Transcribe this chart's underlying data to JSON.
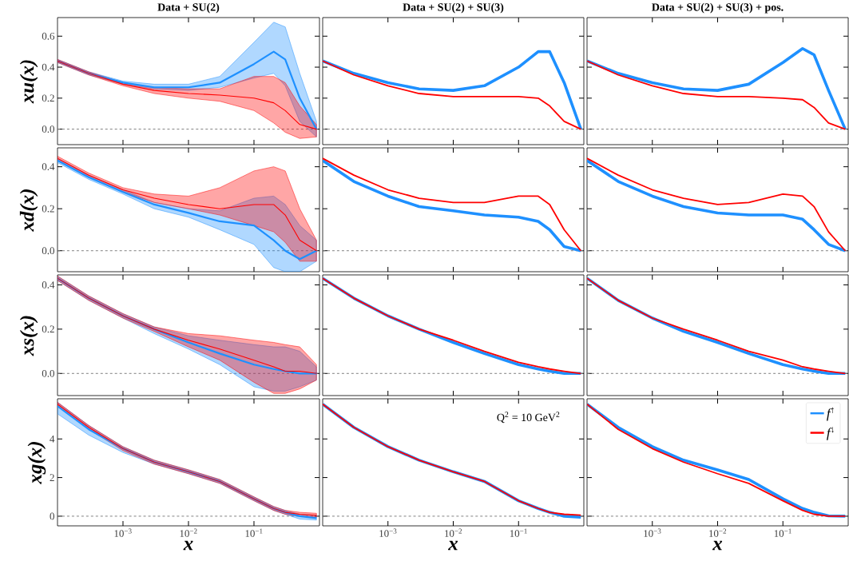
{
  "chart_data": [
    {
      "type": "line",
      "log": "x",
      "title": "Data + SU(2)",
      "ylabel": "xu(x)",
      "x": [
        0.0001,
        0.0003,
        0.001,
        0.003,
        0.01,
        0.03,
        0.1,
        0.2,
        0.3,
        0.5,
        0.9
      ],
      "xlim": [
        0.0001,
        1
      ],
      "ylim": [
        -0.1,
        0.72
      ],
      "xticks": [
        {
          "value": 0.001,
          "label": null
        },
        {
          "value": 0.01,
          "label": null
        },
        {
          "value": 0.1,
          "label": null
        }
      ],
      "yticks": [
        {
          "value": 0,
          "label": "0.0"
        },
        {
          "value": 0.2,
          "label": "0.2"
        },
        {
          "value": 0.4,
          "label": "0.4"
        },
        {
          "value": 0.6,
          "label": "0.6"
        }
      ],
      "tick_labels": "y",
      "ref_lines": [
        {
          "axis": "y",
          "value": 0,
          "color": "#808080",
          "line_style": "dashed"
        }
      ],
      "series": [
        {
          "color": "#1e90ff",
          "values": [
            0.44,
            0.36,
            0.3,
            0.27,
            0.27,
            0.3,
            0.42,
            0.5,
            0.45,
            0.2,
            0.0
          ],
          "lower": [
            0.43,
            0.35,
            0.29,
            0.26,
            0.25,
            0.27,
            0.33,
            0.36,
            0.28,
            0.05,
            -0.05
          ],
          "upper": [
            0.45,
            0.37,
            0.31,
            0.29,
            0.29,
            0.34,
            0.56,
            0.69,
            0.66,
            0.36,
            0.05
          ]
        },
        {
          "color": "#ff0000",
          "values": [
            0.44,
            0.36,
            0.29,
            0.25,
            0.23,
            0.22,
            0.2,
            0.17,
            0.12,
            0.03,
            0.0
          ],
          "lower": [
            0.43,
            0.35,
            0.28,
            0.23,
            0.2,
            0.18,
            0.12,
            0.04,
            -0.02,
            -0.06,
            -0.05
          ],
          "upper": [
            0.45,
            0.37,
            0.3,
            0.27,
            0.26,
            0.26,
            0.34,
            0.34,
            0.3,
            0.15,
            0.03
          ]
        }
      ]
    },
    {
      "type": "line",
      "log": "x",
      "title": "Data + SU(2) + SU(3)",
      "x": [
        0.0001,
        0.0003,
        0.001,
        0.003,
        0.01,
        0.03,
        0.1,
        0.2,
        0.3,
        0.5,
        0.9
      ],
      "xlim": [
        0.0001,
        1
      ],
      "ylim": [
        -0.1,
        0.72
      ],
      "xticks": [
        {
          "value": 0.001,
          "label": null
        },
        {
          "value": 0.01,
          "label": null
        },
        {
          "value": 0.1,
          "label": null
        }
      ],
      "yticks": [
        {
          "value": 0,
          "label": null
        },
        {
          "value": 0.2,
          "label": null
        },
        {
          "value": 0.4,
          "label": null
        },
        {
          "value": 0.6,
          "label": null
        }
      ],
      "tick_labels": false,
      "ref_lines": [
        {
          "axis": "y",
          "value": 0,
          "color": "#808080",
          "line_style": "dashed"
        }
      ],
      "series": [
        {
          "color": "#1e90ff",
          "values": [
            0.44,
            0.36,
            0.3,
            0.26,
            0.25,
            0.28,
            0.4,
            0.5,
            0.5,
            0.3,
            0.0
          ]
        },
        {
          "color": "#ff0000",
          "values": [
            0.44,
            0.35,
            0.28,
            0.23,
            0.21,
            0.21,
            0.21,
            0.2,
            0.15,
            0.05,
            0.0
          ]
        }
      ]
    },
    {
      "type": "line",
      "log": "x",
      "title": "Data + SU(2) + SU(3) + pos.",
      "x": [
        0.0001,
        0.0003,
        0.001,
        0.003,
        0.01,
        0.03,
        0.1,
        0.2,
        0.3,
        0.5,
        0.9
      ],
      "xlim": [
        0.0001,
        1
      ],
      "ylim": [
        -0.1,
        0.72
      ],
      "xticks": [
        {
          "value": 0.001,
          "label": null
        },
        {
          "value": 0.01,
          "label": null
        },
        {
          "value": 0.1,
          "label": null
        }
      ],
      "yticks": [
        {
          "value": 0,
          "label": null
        },
        {
          "value": 0.2,
          "label": null
        },
        {
          "value": 0.4,
          "label": null
        },
        {
          "value": 0.6,
          "label": null
        }
      ],
      "tick_labels": false,
      "ref_lines": [
        {
          "axis": "y",
          "value": 0,
          "color": "#808080",
          "line_style": "dashed"
        }
      ],
      "series": [
        {
          "color": "#1e90ff",
          "values": [
            0.44,
            0.36,
            0.3,
            0.26,
            0.25,
            0.29,
            0.43,
            0.52,
            0.48,
            0.25,
            0.0
          ]
        },
        {
          "color": "#ff0000",
          "values": [
            0.44,
            0.35,
            0.28,
            0.23,
            0.21,
            0.21,
            0.2,
            0.19,
            0.14,
            0.04,
            0.0
          ]
        }
      ]
    },
    {
      "type": "line",
      "log": "x",
      "ylabel": "xd(x)",
      "x": [
        0.0001,
        0.0003,
        0.001,
        0.003,
        0.01,
        0.03,
        0.1,
        0.2,
        0.3,
        0.5,
        0.9
      ],
      "xlim": [
        0.0001,
        1
      ],
      "ylim": [
        -0.1,
        0.49
      ],
      "xticks": [
        {
          "value": 0.001,
          "label": null
        },
        {
          "value": 0.01,
          "label": null
        },
        {
          "value": 0.1,
          "label": null
        }
      ],
      "yticks": [
        {
          "value": 0,
          "label": "0.0"
        },
        {
          "value": 0.2,
          "label": "0.2"
        },
        {
          "value": 0.4,
          "label": "0.4"
        }
      ],
      "tick_labels": "y",
      "ref_lines": [
        {
          "axis": "y",
          "value": 0,
          "color": "#808080",
          "line_style": "dashed"
        }
      ],
      "series": [
        {
          "color": "#1e90ff",
          "values": [
            0.43,
            0.35,
            0.28,
            0.22,
            0.18,
            0.14,
            0.12,
            0.05,
            0.0,
            -0.04,
            0.0
          ],
          "lower": [
            0.42,
            0.34,
            0.27,
            0.2,
            0.16,
            0.1,
            0.03,
            -0.08,
            -0.1,
            -0.1,
            -0.05
          ],
          "upper": [
            0.44,
            0.36,
            0.29,
            0.23,
            0.2,
            0.19,
            0.25,
            0.26,
            0.22,
            0.12,
            0.05
          ]
        },
        {
          "color": "#ff0000",
          "values": [
            0.44,
            0.36,
            0.29,
            0.25,
            0.22,
            0.2,
            0.22,
            0.22,
            0.17,
            0.05,
            0.0
          ],
          "lower": [
            0.43,
            0.35,
            0.28,
            0.23,
            0.2,
            0.17,
            0.12,
            0.09,
            0.04,
            -0.05,
            -0.05
          ],
          "upper": [
            0.45,
            0.37,
            0.3,
            0.27,
            0.26,
            0.3,
            0.38,
            0.4,
            0.38,
            0.2,
            0.05
          ]
        }
      ]
    },
    {
      "type": "line",
      "log": "x",
      "x": [
        0.0001,
        0.0003,
        0.001,
        0.003,
        0.01,
        0.03,
        0.1,
        0.2,
        0.3,
        0.5,
        0.9
      ],
      "xlim": [
        0.0001,
        1
      ],
      "ylim": [
        -0.1,
        0.49
      ],
      "xticks": [
        {
          "value": 0.001,
          "label": null
        },
        {
          "value": 0.01,
          "label": null
        },
        {
          "value": 0.1,
          "label": null
        }
      ],
      "yticks": [
        {
          "value": 0,
          "label": null
        },
        {
          "value": 0.2,
          "label": null
        },
        {
          "value": 0.4,
          "label": null
        }
      ],
      "tick_labels": false,
      "ref_lines": [
        {
          "axis": "y",
          "value": 0,
          "color": "#808080",
          "line_style": "dashed"
        }
      ],
      "series": [
        {
          "color": "#1e90ff",
          "values": [
            0.43,
            0.33,
            0.26,
            0.21,
            0.19,
            0.17,
            0.16,
            0.14,
            0.1,
            0.02,
            0.0
          ]
        },
        {
          "color": "#ff0000",
          "values": [
            0.44,
            0.36,
            0.29,
            0.25,
            0.23,
            0.23,
            0.26,
            0.26,
            0.22,
            0.1,
            0.0
          ]
        }
      ]
    },
    {
      "type": "line",
      "log": "x",
      "x": [
        0.0001,
        0.0003,
        0.001,
        0.003,
        0.01,
        0.03,
        0.1,
        0.2,
        0.3,
        0.5,
        0.9
      ],
      "xlim": [
        0.0001,
        1
      ],
      "ylim": [
        -0.1,
        0.49
      ],
      "xticks": [
        {
          "value": 0.001,
          "label": null
        },
        {
          "value": 0.01,
          "label": null
        },
        {
          "value": 0.1,
          "label": null
        }
      ],
      "yticks": [
        {
          "value": 0,
          "label": null
        },
        {
          "value": 0.2,
          "label": null
        },
        {
          "value": 0.4,
          "label": null
        }
      ],
      "tick_labels": false,
      "ref_lines": [
        {
          "axis": "y",
          "value": 0,
          "color": "#808080",
          "line_style": "dashed"
        }
      ],
      "series": [
        {
          "color": "#1e90ff",
          "values": [
            0.43,
            0.33,
            0.26,
            0.21,
            0.18,
            0.17,
            0.17,
            0.15,
            0.1,
            0.03,
            0.0
          ]
        },
        {
          "color": "#ff0000",
          "values": [
            0.44,
            0.36,
            0.29,
            0.25,
            0.22,
            0.23,
            0.27,
            0.26,
            0.21,
            0.09,
            0.0
          ]
        }
      ]
    },
    {
      "type": "line",
      "log": "x",
      "ylabel": "xs(x)",
      "x": [
        0.0001,
        0.0003,
        0.001,
        0.003,
        0.01,
        0.03,
        0.1,
        0.2,
        0.3,
        0.5,
        0.9
      ],
      "xlim": [
        0.0001,
        1
      ],
      "ylim": [
        -0.1,
        0.445
      ],
      "xticks": [
        {
          "value": 0.001,
          "label": null
        },
        {
          "value": 0.01,
          "label": null
        },
        {
          "value": 0.1,
          "label": null
        }
      ],
      "yticks": [
        {
          "value": 0,
          "label": "0.0"
        },
        {
          "value": 0.2,
          "label": "0.2"
        },
        {
          "value": 0.4,
          "label": "0.4"
        }
      ],
      "tick_labels": "y",
      "ref_lines": [
        {
          "axis": "y",
          "value": 0,
          "color": "#808080",
          "line_style": "dashed"
        }
      ],
      "series": [
        {
          "color": "#1e90ff",
          "values": [
            0.43,
            0.34,
            0.26,
            0.2,
            0.14,
            0.09,
            0.04,
            0.02,
            0.01,
            0.0,
            0.0
          ],
          "lower": [
            0.42,
            0.33,
            0.25,
            0.18,
            0.11,
            0.04,
            -0.06,
            -0.08,
            -0.08,
            -0.06,
            -0.03
          ],
          "upper": [
            0.44,
            0.35,
            0.27,
            0.21,
            0.17,
            0.15,
            0.13,
            0.12,
            0.12,
            0.1,
            0.03
          ]
        },
        {
          "color": "#ff0000",
          "values": [
            0.43,
            0.34,
            0.26,
            0.2,
            0.15,
            0.11,
            0.06,
            0.03,
            0.01,
            0.01,
            0.0
          ],
          "lower": [
            0.42,
            0.33,
            0.25,
            0.19,
            0.12,
            0.06,
            -0.04,
            -0.09,
            -0.09,
            -0.07,
            -0.03
          ],
          "upper": [
            0.44,
            0.35,
            0.27,
            0.21,
            0.18,
            0.17,
            0.15,
            0.14,
            0.13,
            0.12,
            0.04
          ]
        }
      ]
    },
    {
      "type": "line",
      "log": "x",
      "x": [
        0.0001,
        0.0003,
        0.001,
        0.003,
        0.01,
        0.03,
        0.1,
        0.2,
        0.3,
        0.5,
        0.9
      ],
      "xlim": [
        0.0001,
        1
      ],
      "ylim": [
        -0.1,
        0.445
      ],
      "xticks": [
        {
          "value": 0.001,
          "label": null
        },
        {
          "value": 0.01,
          "label": null
        },
        {
          "value": 0.1,
          "label": null
        }
      ],
      "yticks": [
        {
          "value": 0,
          "label": null
        },
        {
          "value": 0.2,
          "label": null
        },
        {
          "value": 0.4,
          "label": null
        }
      ],
      "tick_labels": false,
      "ref_lines": [
        {
          "axis": "y",
          "value": 0,
          "color": "#808080",
          "line_style": "dashed"
        }
      ],
      "series": [
        {
          "color": "#1e90ff",
          "values": [
            0.43,
            0.34,
            0.26,
            0.2,
            0.14,
            0.09,
            0.04,
            0.02,
            0.01,
            0.0,
            0.0
          ]
        },
        {
          "color": "#ff0000",
          "values": [
            0.43,
            0.34,
            0.26,
            0.2,
            0.15,
            0.1,
            0.05,
            0.03,
            0.02,
            0.01,
            0.0
          ]
        }
      ]
    },
    {
      "type": "line",
      "log": "x",
      "x": [
        0.0001,
        0.0003,
        0.001,
        0.003,
        0.01,
        0.03,
        0.1,
        0.2,
        0.3,
        0.5,
        0.9
      ],
      "xlim": [
        0.0001,
        1
      ],
      "ylim": [
        -0.1,
        0.445
      ],
      "xticks": [
        {
          "value": 0.001,
          "label": null
        },
        {
          "value": 0.01,
          "label": null
        },
        {
          "value": 0.1,
          "label": null
        }
      ],
      "yticks": [
        {
          "value": 0,
          "label": null
        },
        {
          "value": 0.2,
          "label": null
        },
        {
          "value": 0.4,
          "label": null
        }
      ],
      "tick_labels": false,
      "ref_lines": [
        {
          "axis": "y",
          "value": 0,
          "color": "#808080",
          "line_style": "dashed"
        }
      ],
      "series": [
        {
          "color": "#1e90ff",
          "values": [
            0.43,
            0.33,
            0.25,
            0.19,
            0.14,
            0.09,
            0.04,
            0.02,
            0.01,
            0.0,
            0.0
          ]
        },
        {
          "color": "#ff0000",
          "values": [
            0.43,
            0.33,
            0.25,
            0.2,
            0.15,
            0.1,
            0.06,
            0.03,
            0.02,
            0.01,
            0.0
          ]
        }
      ]
    },
    {
      "type": "line",
      "log": "x",
      "ylabel": "xg(x)",
      "xlabel": "x",
      "x": [
        0.0001,
        0.0003,
        0.001,
        0.003,
        0.01,
        0.03,
        0.1,
        0.2,
        0.3,
        0.5,
        0.9
      ],
      "xlim": [
        0.0001,
        1
      ],
      "ylim": [
        -0.5,
        6.08
      ],
      "xticks": [
        {
          "value": 0.001,
          "label": "10$^{−3}$"
        },
        {
          "value": 0.01,
          "label": "10$^{−2}$"
        },
        {
          "value": 0.1,
          "label": "10$^{−1}$"
        }
      ],
      "yticks": [
        0,
        2,
        4
      ],
      "ref_lines": [
        {
          "axis": "y",
          "value": 0,
          "color": "#808080",
          "line_style": "dashed"
        }
      ],
      "series": [
        {
          "color": "#1e90ff",
          "values": [
            5.7,
            4.5,
            3.5,
            2.8,
            2.3,
            1.8,
            0.9,
            0.4,
            0.2,
            0.0,
            -0.1
          ],
          "lower": [
            5.3,
            4.2,
            3.3,
            2.7,
            2.2,
            1.7,
            0.8,
            0.3,
            0.1,
            -0.15,
            -0.2
          ],
          "upper": [
            5.9,
            4.7,
            3.6,
            2.9,
            2.4,
            1.9,
            1.0,
            0.5,
            0.3,
            0.1,
            0.05
          ]
        },
        {
          "color": "#ff0000",
          "values": [
            5.8,
            4.6,
            3.5,
            2.8,
            2.3,
            1.8,
            0.9,
            0.4,
            0.2,
            0.1,
            0.05
          ],
          "lower": [
            5.7,
            4.5,
            3.4,
            2.7,
            2.2,
            1.7,
            0.8,
            0.3,
            0.1,
            0.0,
            -0.05
          ],
          "upper": [
            5.9,
            4.7,
            3.6,
            2.9,
            2.4,
            1.9,
            1.0,
            0.5,
            0.3,
            0.2,
            0.15
          ]
        }
      ]
    },
    {
      "type": "line",
      "log": "x",
      "xlabel": "x",
      "annotations": [
        "Q$^{2}$ = 10 GeV$^{2}$"
      ],
      "x": [
        0.0001,
        0.0003,
        0.001,
        0.003,
        0.01,
        0.03,
        0.1,
        0.2,
        0.3,
        0.5,
        0.9
      ],
      "xlim": [
        0.0001,
        1
      ],
      "ylim": [
        -0.5,
        6.08
      ],
      "xticks": [
        {
          "value": 0.001,
          "label": "10$^{−3}$"
        },
        {
          "value": 0.01,
          "label": "10$^{−2}$"
        },
        {
          "value": 0.1,
          "label": "10$^{−1}$"
        }
      ],
      "yticks": [
        {
          "value": 0,
          "label": null
        },
        {
          "value": 2,
          "label": null
        },
        {
          "value": 4,
          "label": null
        }
      ],
      "tick_labels": "x",
      "ref_lines": [
        {
          "axis": "y",
          "value": 0,
          "color": "#808080",
          "line_style": "dashed"
        }
      ],
      "series": [
        {
          "color": "#1e90ff",
          "values": [
            5.8,
            4.6,
            3.6,
            2.9,
            2.3,
            1.8,
            0.8,
            0.4,
            0.2,
            0.0,
            -0.05
          ]
        },
        {
          "color": "#ff0000",
          "values": [
            5.8,
            4.6,
            3.6,
            2.9,
            2.3,
            1.8,
            0.8,
            0.4,
            0.2,
            0.1,
            0.05
          ]
        }
      ]
    },
    {
      "type": "line",
      "log": "x",
      "xlabel": "x",
      "legend": "top right",
      "x": [
        0.0001,
        0.0003,
        0.001,
        0.003,
        0.01,
        0.03,
        0.1,
        0.2,
        0.3,
        0.5,
        0.9
      ],
      "xlim": [
        0.0001,
        1
      ],
      "ylim": [
        -0.5,
        6.08
      ],
      "xticks": [
        {
          "value": 0.001,
          "label": "10$^{−3}$"
        },
        {
          "value": 0.01,
          "label": "10$^{−2}$"
        },
        {
          "value": 0.1,
          "label": "10$^{−1}$"
        }
      ],
      "yticks": [
        {
          "value": 0,
          "label": null
        },
        {
          "value": 2,
          "label": null
        },
        {
          "value": 4,
          "label": null
        }
      ],
      "tick_labels": "x",
      "ref_lines": [
        {
          "axis": "y",
          "value": 0,
          "color": "#808080",
          "line_style": "dashed"
        }
      ],
      "series": [
        {
          "name": "f$^{↑}$",
          "color": "#1e90ff",
          "values": [
            5.8,
            4.6,
            3.6,
            2.9,
            2.4,
            1.9,
            0.9,
            0.4,
            0.2,
            0.02,
            0.0
          ]
        },
        {
          "name": "f$^{↓}$",
          "color": "#ff0000",
          "values": [
            5.8,
            4.5,
            3.5,
            2.8,
            2.2,
            1.7,
            0.8,
            0.3,
            0.1,
            0.0,
            0.0
          ]
        }
      ]
    }
  ]
}
